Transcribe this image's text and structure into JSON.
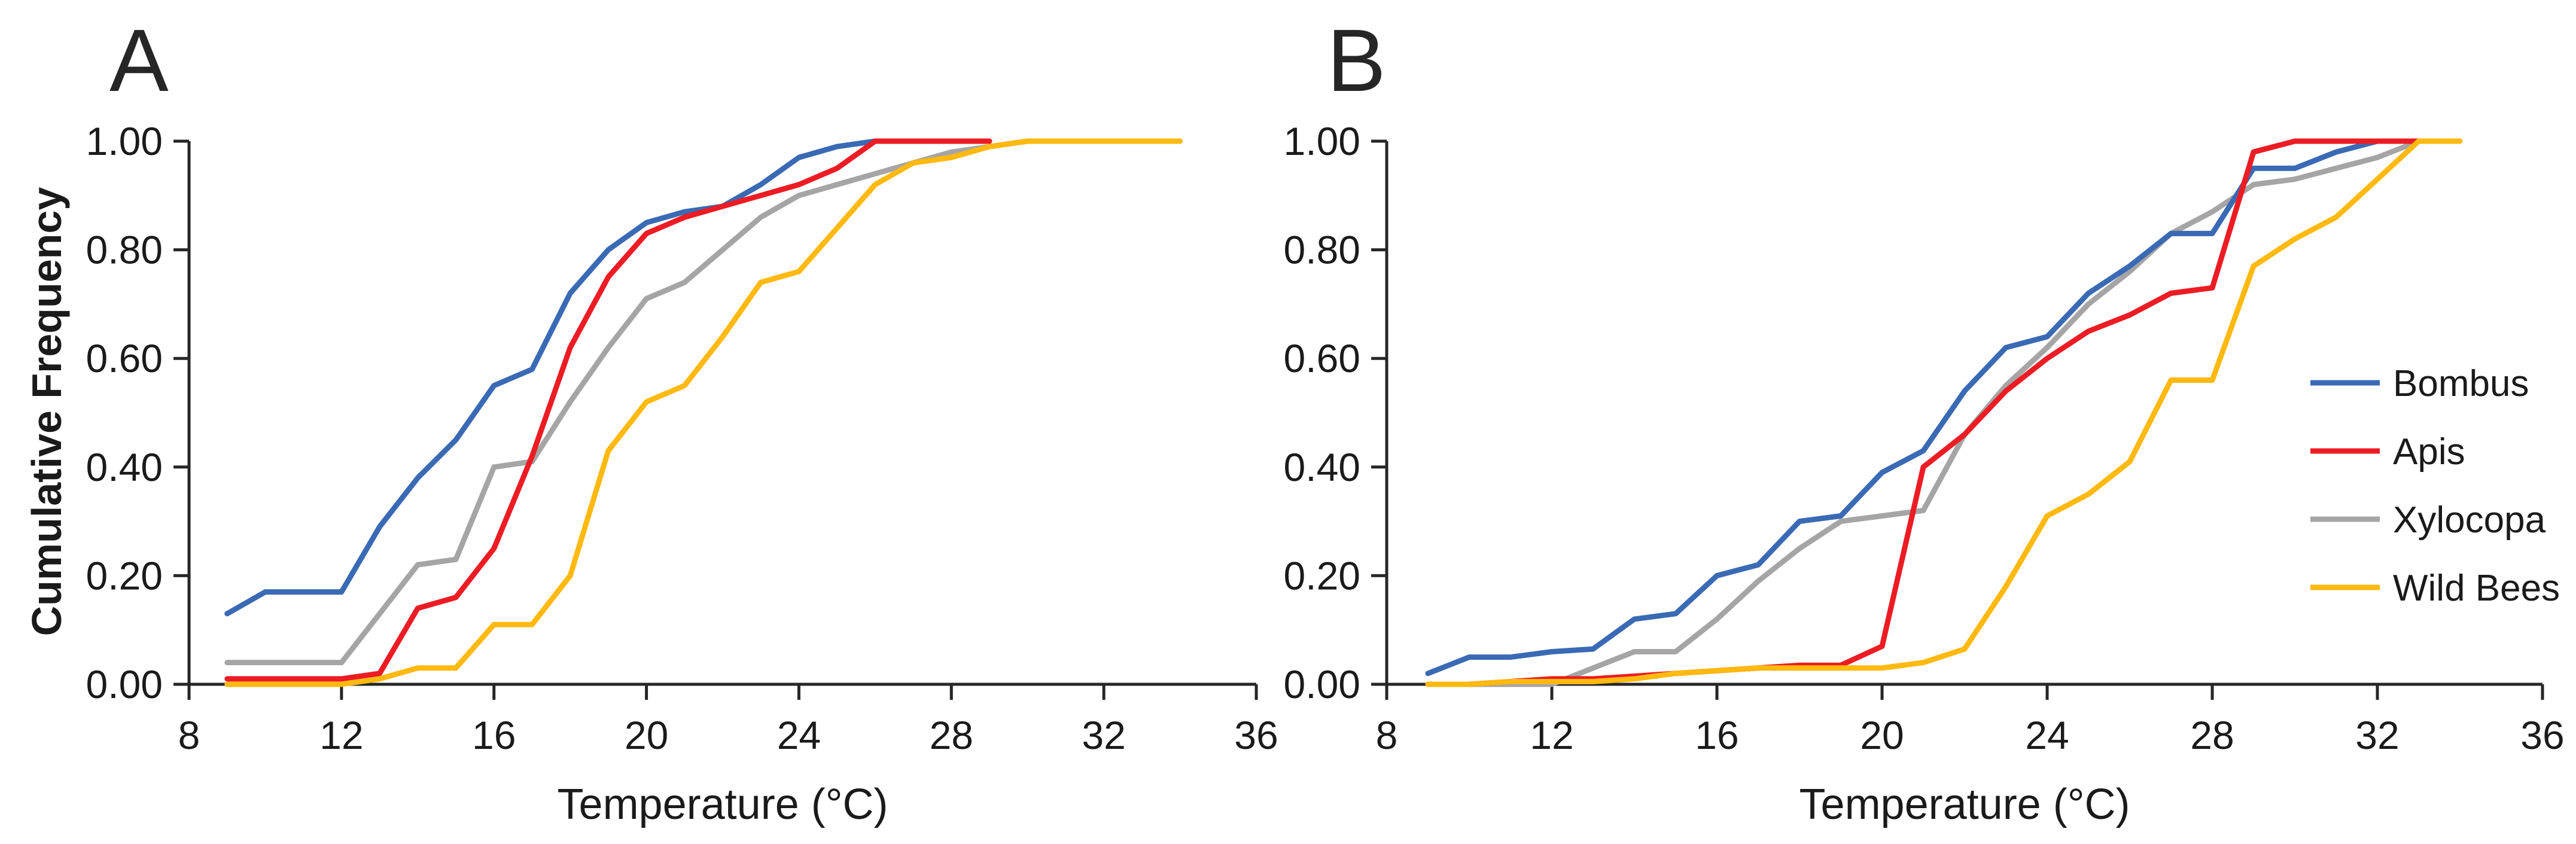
{
  "figure": {
    "background": "#ffffff",
    "text_color": "#1a1a1a",
    "axis_color": "#262626"
  },
  "chart_data": [
    {
      "type": "line",
      "panel_label": "A",
      "title": "",
      "xlabel": "Temperature (°C)",
      "ylabel": "Cumulative Frequency",
      "xlim": [
        8,
        36
      ],
      "ylim": [
        0,
        1
      ],
      "x_ticks": [
        "8",
        "12",
        "16",
        "20",
        "24",
        "28",
        "32",
        "36"
      ],
      "y_ticks": [
        "0.00",
        "0.20",
        "0.40",
        "0.60",
        "0.80",
        "1.00"
      ],
      "grid": false,
      "legend_position": "none",
      "series": [
        {
          "name": "Bombus",
          "color": "#3A6AB4",
          "x": [
            9,
            10,
            11,
            12,
            13,
            14,
            15,
            16,
            17,
            18,
            19,
            20,
            21,
            22,
            23,
            24,
            25,
            26
          ],
          "y": [
            0.13,
            0.17,
            0.17,
            0.17,
            0.29,
            0.38,
            0.45,
            0.55,
            0.58,
            0.72,
            0.8,
            0.85,
            0.87,
            0.88,
            0.92,
            0.97,
            0.99,
            1.0
          ]
        },
        {
          "name": "Apis",
          "color": "#EC1C24",
          "x": [
            9,
            10,
            11,
            12,
            13,
            14,
            15,
            16,
            17,
            18,
            19,
            20,
            21,
            22,
            23,
            24,
            25,
            26,
            27,
            28,
            29
          ],
          "y": [
            0.01,
            0.01,
            0.01,
            0.01,
            0.02,
            0.14,
            0.16,
            0.25,
            0.42,
            0.62,
            0.75,
            0.83,
            0.86,
            0.88,
            0.9,
            0.92,
            0.95,
            1.0,
            1.0,
            1.0,
            1.0
          ]
        },
        {
          "name": "Xylocopa",
          "color": "#A5A5A5",
          "x": [
            9,
            10,
            11,
            12,
            13,
            14,
            15,
            16,
            17,
            18,
            19,
            20,
            21,
            22,
            23,
            24,
            25,
            26,
            27,
            28,
            29,
            30
          ],
          "y": [
            0.04,
            0.04,
            0.04,
            0.04,
            0.13,
            0.22,
            0.23,
            0.4,
            0.41,
            0.52,
            0.62,
            0.71,
            0.74,
            0.8,
            0.86,
            0.9,
            0.92,
            0.94,
            0.96,
            0.98,
            0.99,
            1.0
          ]
        },
        {
          "name": "Wild Bees",
          "color": "#FFB90F",
          "x": [
            9,
            10,
            11,
            12,
            13,
            14,
            15,
            16,
            17,
            18,
            19,
            20,
            21,
            22,
            23,
            24,
            25,
            26,
            27,
            28,
            29,
            30,
            31,
            32,
            33,
            34
          ],
          "y": [
            0.0,
            0.0,
            0.0,
            0.0,
            0.01,
            0.03,
            0.03,
            0.11,
            0.11,
            0.2,
            0.43,
            0.52,
            0.55,
            0.64,
            0.74,
            0.76,
            0.84,
            0.92,
            0.96,
            0.97,
            0.99,
            1.0,
            1.0,
            1.0,
            1.0,
            1.0
          ]
        }
      ]
    },
    {
      "type": "line",
      "panel_label": "B",
      "title": "",
      "xlabel": "Temperature (°C)",
      "ylabel": "",
      "xlim": [
        8,
        36
      ],
      "ylim": [
        0,
        1
      ],
      "x_ticks": [
        "8",
        "12",
        "16",
        "20",
        "24",
        "28",
        "32",
        "36"
      ],
      "y_ticks": [
        "0.00",
        "0.20",
        "0.40",
        "0.60",
        "0.80",
        "1.00"
      ],
      "grid": false,
      "legend_position": "right",
      "series": [
        {
          "name": "Bombus",
          "color": "#3A6AB4",
          "x": [
            9,
            10,
            11,
            12,
            13,
            14,
            15,
            16,
            17,
            18,
            19,
            20,
            21,
            22,
            23,
            24,
            25,
            26,
            27,
            28,
            29,
            30,
            31,
            32,
            33
          ],
          "y": [
            0.02,
            0.05,
            0.05,
            0.06,
            0.065,
            0.12,
            0.13,
            0.2,
            0.22,
            0.3,
            0.31,
            0.39,
            0.43,
            0.54,
            0.62,
            0.64,
            0.72,
            0.77,
            0.83,
            0.83,
            0.95,
            0.95,
            0.98,
            1.0,
            1.0
          ]
        },
        {
          "name": "Apis",
          "color": "#EC1C24",
          "x": [
            9,
            10,
            11,
            12,
            13,
            14,
            15,
            16,
            17,
            18,
            19,
            20,
            21,
            22,
            23,
            24,
            25,
            26,
            27,
            28,
            29,
            30,
            31,
            32,
            33
          ],
          "y": [
            0.0,
            0.0,
            0.005,
            0.01,
            0.01,
            0.015,
            0.02,
            0.025,
            0.03,
            0.035,
            0.035,
            0.07,
            0.4,
            0.46,
            0.54,
            0.6,
            0.65,
            0.68,
            0.72,
            0.73,
            0.98,
            1.0,
            1.0,
            1.0,
            1.0
          ]
        },
        {
          "name": "Xylocopa",
          "color": "#A5A5A5",
          "x": [
            9,
            10,
            11,
            12,
            13,
            14,
            15,
            16,
            17,
            18,
            19,
            20,
            21,
            22,
            23,
            24,
            25,
            26,
            27,
            28,
            29,
            30,
            31,
            32,
            33
          ],
          "y": [
            0.0,
            0.0,
            0.0,
            0.0,
            0.03,
            0.06,
            0.06,
            0.12,
            0.19,
            0.25,
            0.3,
            0.31,
            0.32,
            0.46,
            0.55,
            0.62,
            0.7,
            0.76,
            0.83,
            0.87,
            0.92,
            0.93,
            0.95,
            0.97,
            1.0
          ]
        },
        {
          "name": "Wild Bees",
          "color": "#FFB90F",
          "x": [
            9,
            10,
            11,
            12,
            13,
            14,
            15,
            16,
            17,
            18,
            19,
            20,
            21,
            22,
            23,
            24,
            25,
            26,
            27,
            28,
            29,
            30,
            31,
            32,
            33,
            34
          ],
          "y": [
            0.0,
            0.0,
            0.005,
            0.005,
            0.005,
            0.01,
            0.02,
            0.025,
            0.03,
            0.03,
            0.03,
            0.03,
            0.04,
            0.065,
            0.18,
            0.31,
            0.35,
            0.41,
            0.56,
            0.56,
            0.77,
            0.82,
            0.86,
            0.93,
            1.0,
            1.0
          ]
        }
      ]
    }
  ],
  "legend": {
    "entries": [
      {
        "label": "Bombus",
        "color": "#3A6AB4"
      },
      {
        "label": "Apis",
        "color": "#EC1C24"
      },
      {
        "label": "Xylocopa",
        "color": "#A5A5A5"
      },
      {
        "label": "Wild Bees",
        "color": "#FFB90F"
      }
    ]
  }
}
